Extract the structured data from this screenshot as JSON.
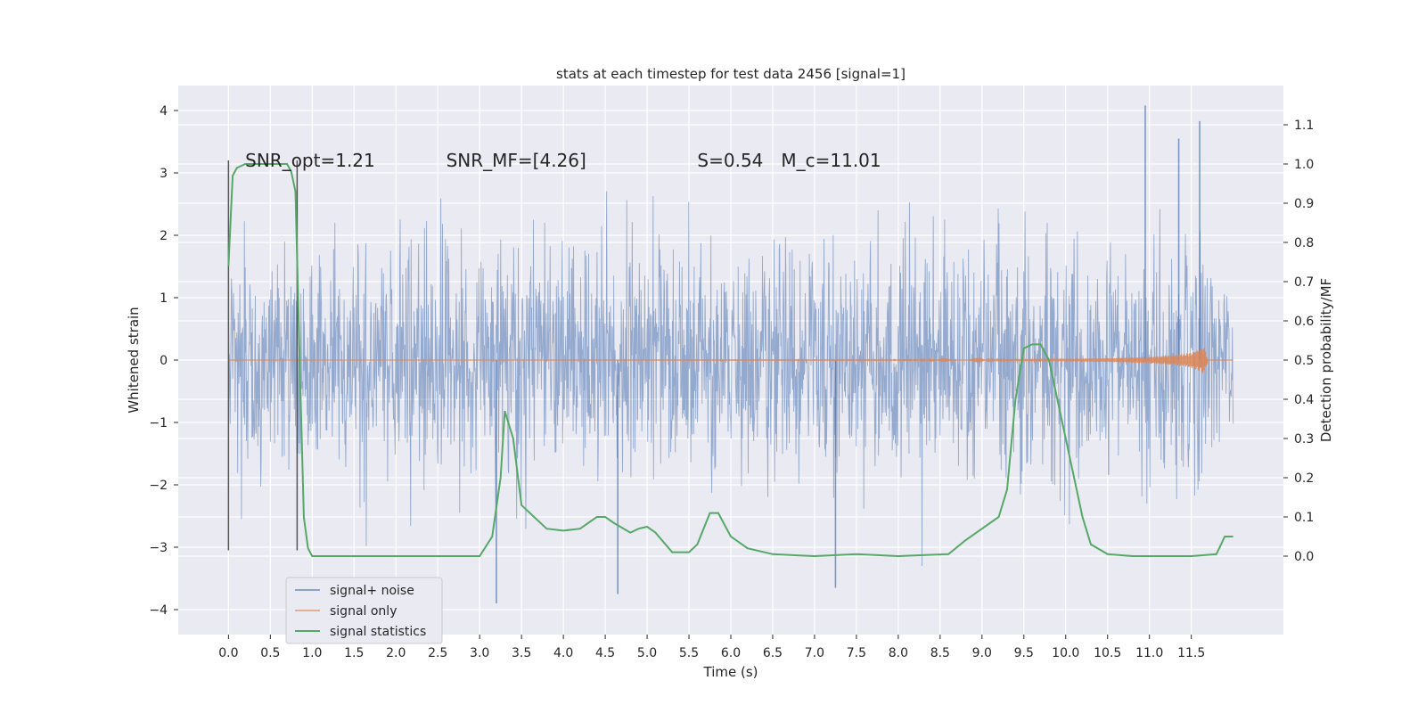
{
  "chart_data": {
    "type": "line",
    "title": "stats at each timestep for test data 2456 [signal=1]",
    "xlabel": "Time (s)",
    "ylabel": "Whitened strain",
    "y2label": "Detection probability/MF",
    "xlim": [
      -0.6,
      12.6
    ],
    "ylim": [
      -4.4,
      4.4
    ],
    "y2lim": [
      -0.2,
      1.2
    ],
    "x_ticks": [
      0.0,
      0.5,
      1.0,
      1.5,
      2.0,
      2.5,
      3.0,
      3.5,
      4.0,
      4.5,
      5.0,
      5.5,
      6.0,
      6.5,
      7.0,
      7.5,
      8.0,
      8.5,
      9.0,
      9.5,
      10.0,
      10.5,
      11.0,
      11.5
    ],
    "x_tick_labels": [
      "0.0",
      "0.5",
      "1.0",
      "1.5",
      "2.0",
      "2.5",
      "3.0",
      "3.5",
      "4.0",
      "4.5",
      "5.0",
      "5.5",
      "6.0",
      "6.5",
      "7.0",
      "7.5",
      "8.0",
      "8.5",
      "9.0",
      "9.5",
      "10.0",
      "10.5",
      "11.0",
      "11.5"
    ],
    "y_ticks": [
      4,
      3,
      2,
      1,
      0,
      -1,
      -2,
      -3,
      -4
    ],
    "y_tick_labels": [
      "4",
      "3",
      "2",
      "1",
      "0",
      "−1",
      "−2",
      "−3",
      "−4"
    ],
    "y2_ticks": [
      1.1,
      1.0,
      0.9,
      0.8,
      0.7,
      0.6,
      0.5,
      0.4,
      0.3,
      0.2,
      0.1,
      0.0
    ],
    "y2_tick_labels": [
      "1.1",
      "1.0",
      "0.9",
      "0.8",
      "0.7",
      "0.6",
      "0.5",
      "0.4",
      "0.3",
      "0.2",
      "0.1",
      "0.0"
    ],
    "grid": true,
    "legend_position": "lower-left",
    "colors": {
      "noise": "#4c72b0",
      "signal": "#dd8452",
      "stats": "#55a868",
      "vline": "#555555",
      "background": "#eaeaf2",
      "grid": "#ffffff"
    },
    "annotations": [
      {
        "text": "SNR_opt=1.21",
        "x": 0.2
      },
      {
        "text": "SNR_MF=[4.26]",
        "x": 2.6
      },
      {
        "text": "S=0.54",
        "x": 5.6
      },
      {
        "text": "M_c=11.01",
        "x": 6.6
      }
    ],
    "annotation_y": 3.2,
    "vertical_lines": [
      {
        "x": 0.0,
        "y_from": -3.05,
        "y_to": 3.2
      },
      {
        "x": 0.82,
        "y_from": -3.05,
        "y_to": 3.2
      }
    ],
    "noise_series": {
      "name": "signal+ noise",
      "t_start": 0.0,
      "t_end": 12.0,
      "typical_abs_max": 2.6,
      "peak_spikes": [
        {
          "x": 10.95,
          "y": 4.08
        },
        {
          "x": 11.6,
          "y": 3.83
        },
        {
          "x": 11.35,
          "y": 3.55
        },
        {
          "x": 4.65,
          "y": -3.75
        },
        {
          "x": 3.2,
          "y": -3.9
        },
        {
          "x": 7.25,
          "y": -3.65
        }
      ]
    },
    "signal_series": {
      "name": "signal only",
      "x": [
        0.0,
        8.0,
        9.0,
        10.0,
        10.5,
        11.0,
        11.3,
        11.5,
        11.6,
        11.65,
        11.7,
        12.0
      ],
      "amplitude": [
        0.0,
        0.005,
        0.01,
        0.02,
        0.03,
        0.05,
        0.08,
        0.12,
        0.18,
        0.22,
        0.0,
        0.0
      ]
    },
    "stats_series": {
      "name": "signal statistics",
      "x": [
        0.0,
        0.05,
        0.1,
        0.2,
        0.3,
        0.5,
        0.7,
        0.75,
        0.8,
        0.85,
        0.9,
        0.95,
        1.0,
        1.2,
        2.0,
        3.0,
        3.15,
        3.25,
        3.3,
        3.4,
        3.5,
        3.6,
        3.8,
        4.0,
        4.2,
        4.4,
        4.5,
        4.6,
        4.8,
        4.9,
        5.0,
        5.1,
        5.3,
        5.5,
        5.6,
        5.75,
        5.85,
        6.0,
        6.2,
        6.5,
        7.0,
        7.5,
        8.0,
        8.6,
        8.8,
        9.0,
        9.2,
        9.3,
        9.4,
        9.5,
        9.6,
        9.7,
        9.8,
        9.9,
        10.0,
        10.2,
        10.3,
        10.5,
        10.8,
        11.5,
        11.8,
        11.9,
        12.0
      ],
      "values": [
        0.74,
        0.97,
        0.99,
        1.0,
        1.0,
        1.0,
        1.0,
        0.98,
        0.93,
        0.5,
        0.1,
        0.02,
        0.0,
        0.0,
        0.0,
        0.0,
        0.05,
        0.2,
        0.37,
        0.3,
        0.13,
        0.11,
        0.07,
        0.065,
        0.07,
        0.1,
        0.1,
        0.085,
        0.06,
        0.07,
        0.075,
        0.06,
        0.01,
        0.01,
        0.03,
        0.11,
        0.11,
        0.05,
        0.02,
        0.005,
        0.0,
        0.005,
        0.0,
        0.005,
        0.04,
        0.07,
        0.1,
        0.17,
        0.4,
        0.53,
        0.54,
        0.54,
        0.5,
        0.4,
        0.3,
        0.1,
        0.03,
        0.005,
        0.0,
        0.0,
        0.005,
        0.05,
        0.05
      ]
    }
  }
}
